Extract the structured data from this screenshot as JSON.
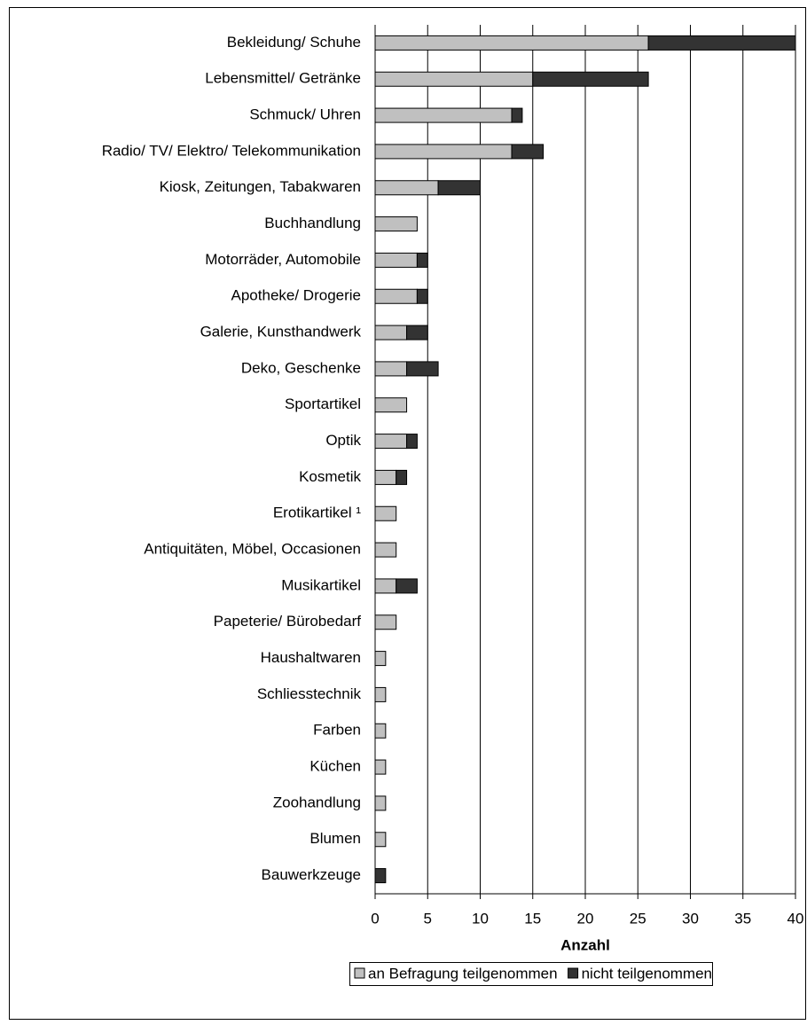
{
  "chart_data": {
    "type": "bar",
    "orientation": "horizontal",
    "stacked": true,
    "categories": [
      "Bekleidung/ Schuhe",
      "Lebensmittel/ Getränke",
      "Schmuck/ Uhren",
      "Radio/ TV/ Elektro/ Telekommunikation",
      "Kiosk, Zeitungen, Tabakwaren",
      "Buchhandlung",
      "Motorräder, Automobile",
      "Apotheke/ Drogerie",
      "Galerie, Kunsthandwerk",
      "Deko, Geschenke",
      "Sportartikel",
      "Optik",
      "Kosmetik",
      "Erotikartikel ¹",
      "Antiquitäten, Möbel, Occasionen",
      "Musikartikel",
      "Papeterie/ Bürobedarf",
      "Haushaltwaren",
      "Schliesstechnik",
      "Farben",
      "Küchen",
      "Zoohandlung",
      "Blumen",
      "Bauwerkzeuge"
    ],
    "series": [
      {
        "name": "an Befragung teilgenommen",
        "color": "#c0c0c0",
        "values": [
          26,
          15,
          13,
          13,
          6,
          4,
          4,
          4,
          3,
          3,
          3,
          3,
          2,
          2,
          2,
          2,
          2,
          1,
          1,
          1,
          1,
          1,
          1,
          0
        ]
      },
      {
        "name": "nicht teilgenommen",
        "color": "#333333",
        "values": [
          14,
          11,
          1,
          3,
          4,
          0,
          1,
          1,
          2,
          3,
          0,
          1,
          1,
          0,
          0,
          2,
          0,
          0,
          0,
          0,
          0,
          0,
          0,
          1
        ]
      }
    ],
    "x_label": "Anzahl",
    "xlim": [
      0,
      40
    ],
    "xticks": [
      0,
      5,
      10,
      15,
      20,
      25,
      30,
      35,
      40
    ],
    "grid": true,
    "legend": "bottom"
  }
}
